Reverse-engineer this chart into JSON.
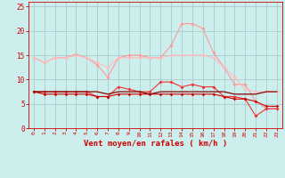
{
  "xlabel": "Vent moyen/en rafales ( km/h )",
  "bg_color": "#cceeed",
  "grid_color": "#aacccc",
  "xlim": [
    -0.5,
    23.5
  ],
  "ylim": [
    0,
    26
  ],
  "yticks": [
    0,
    5,
    10,
    15,
    20,
    25
  ],
  "xticks": [
    0,
    1,
    2,
    3,
    4,
    5,
    6,
    7,
    8,
    9,
    10,
    11,
    12,
    13,
    14,
    15,
    16,
    17,
    18,
    19,
    20,
    21,
    22,
    23
  ],
  "line1_x": [
    0,
    1,
    2,
    3,
    4,
    5,
    6,
    7,
    8,
    9,
    10,
    11,
    12,
    13,
    14,
    15,
    16,
    17,
    18,
    19,
    20,
    21,
    22,
    23
  ],
  "line1_y": [
    14.5,
    13.5,
    14.5,
    14.5,
    15.2,
    14.5,
    13.0,
    10.5,
    14.5,
    15.0,
    15.0,
    14.5,
    14.5,
    17.0,
    21.5,
    21.5,
    20.5,
    15.5,
    12.5,
    9.0,
    9.0,
    5.5,
    4.0,
    4.0
  ],
  "line1_color": "#ff9999",
  "line2_x": [
    0,
    1,
    2,
    3,
    4,
    5,
    6,
    7,
    8,
    9,
    10,
    11,
    12,
    13,
    14,
    15,
    16,
    17,
    18,
    19,
    20,
    21,
    22,
    23
  ],
  "line2_y": [
    14.5,
    13.5,
    14.5,
    14.5,
    15.0,
    14.5,
    13.5,
    12.5,
    14.5,
    14.5,
    14.5,
    14.5,
    14.5,
    15.0,
    15.0,
    15.0,
    15.0,
    14.5,
    12.5,
    10.5,
    8.0,
    7.5,
    7.5,
    7.5
  ],
  "line2_color": "#ffbbbb",
  "line3_x": [
    0,
    1,
    2,
    3,
    4,
    5,
    6,
    7,
    8,
    9,
    10,
    11,
    12,
    13,
    14,
    15,
    16,
    17,
    18,
    19,
    20,
    21,
    22,
    23
  ],
  "line3_y": [
    7.5,
    7.5,
    7.5,
    7.5,
    7.5,
    7.5,
    6.5,
    6.5,
    8.5,
    8.0,
    7.5,
    7.5,
    9.5,
    9.5,
    8.5,
    9.0,
    8.5,
    8.5,
    6.5,
    6.5,
    6.0,
    2.5,
    4.0,
    4.0
  ],
  "line3_color": "#ee3333",
  "line4_x": [
    0,
    1,
    2,
    3,
    4,
    5,
    6,
    7,
    8,
    9,
    10,
    11,
    12,
    13,
    14,
    15,
    16,
    17,
    18,
    19,
    20,
    21,
    22,
    23
  ],
  "line4_y": [
    7.5,
    7.0,
    7.0,
    7.0,
    7.0,
    7.0,
    6.5,
    6.5,
    7.0,
    7.0,
    7.0,
    7.0,
    7.0,
    7.0,
    7.0,
    7.0,
    7.0,
    7.0,
    6.5,
    6.0,
    6.0,
    5.5,
    4.5,
    4.5
  ],
  "line4_color": "#cc0000",
  "line5_x": [
    0,
    1,
    2,
    3,
    4,
    5,
    6,
    7,
    8,
    9,
    10,
    11,
    12,
    13,
    14,
    15,
    16,
    17,
    18,
    19,
    20,
    21,
    22,
    23
  ],
  "line5_y": [
    7.5,
    7.5,
    7.5,
    7.5,
    7.5,
    7.5,
    7.5,
    7.0,
    7.5,
    7.5,
    7.5,
    7.0,
    7.5,
    7.5,
    7.5,
    7.5,
    7.5,
    7.5,
    7.5,
    7.0,
    7.0,
    7.0,
    7.5,
    7.5
  ],
  "line5_color": "#880000",
  "tick_color": "#cc0000",
  "label_color": "#cc0000"
}
